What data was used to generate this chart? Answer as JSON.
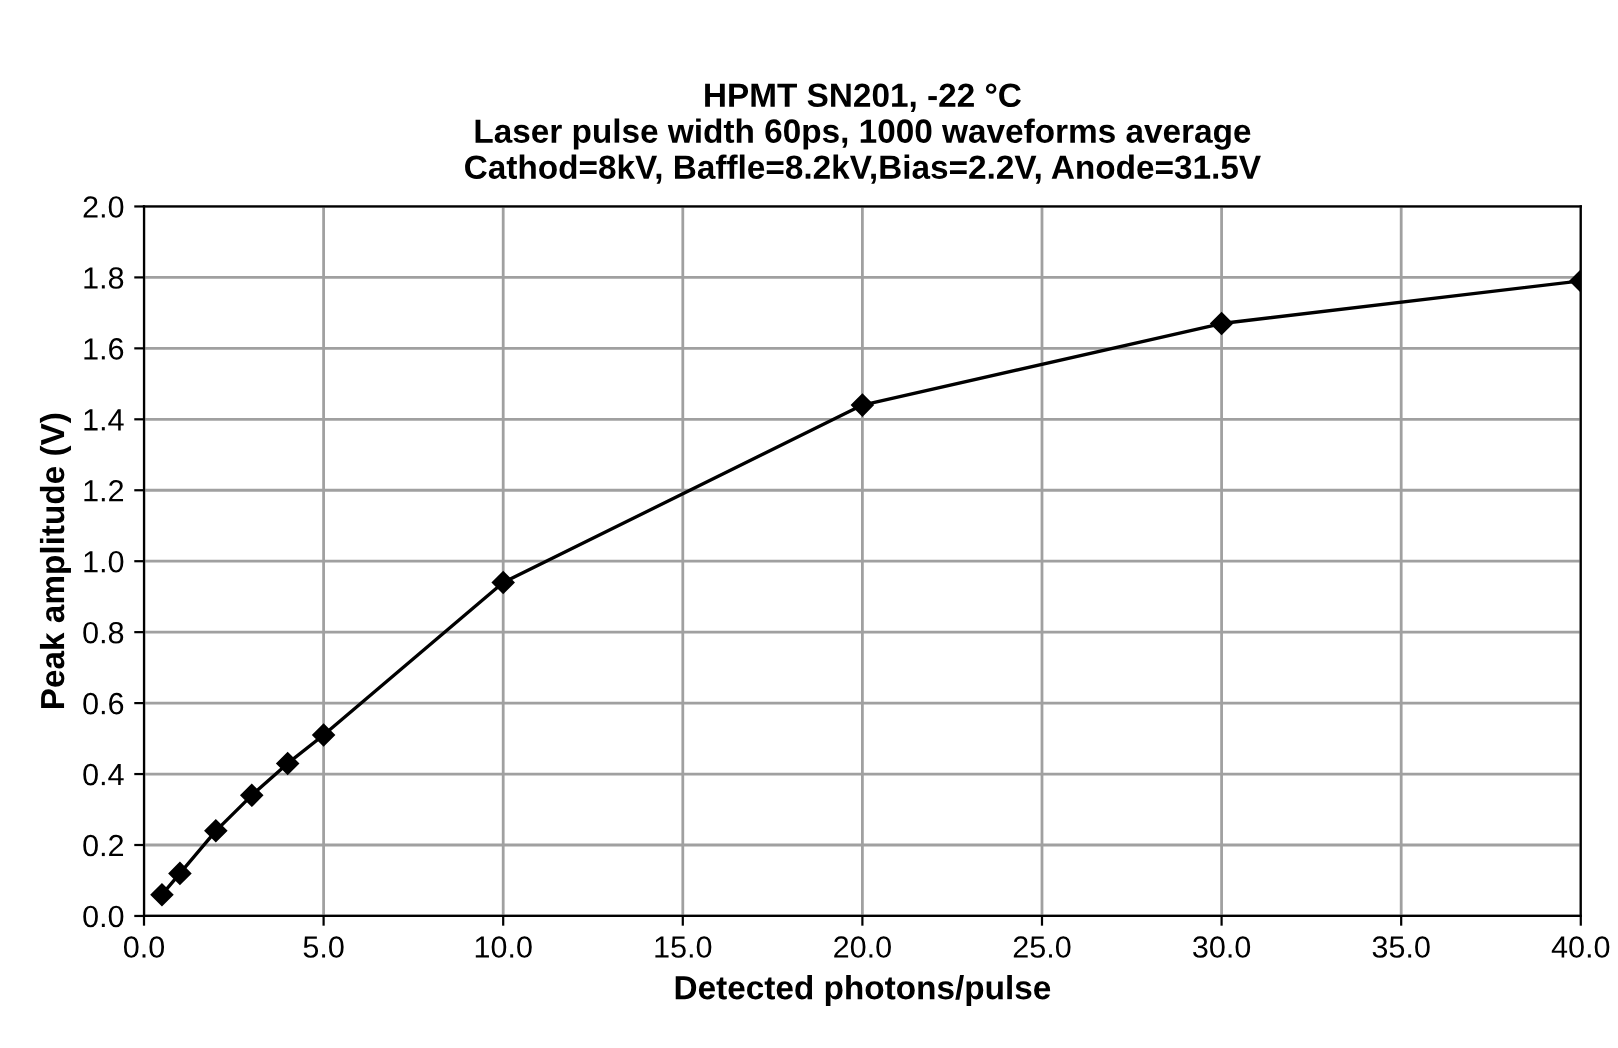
{
  "chart_data": {
    "type": "line",
    "title": "HPMT SN201, -22 °C\nLaser pulse width 60ps, 1000 waveforms average\nCathod=8kV, Baffle=8.2kV,Bias=2.2V, Anode=31.5V",
    "xlabel": "Detected photons/pulse",
    "ylabel": "Peak amplitude (V)",
    "x": [
      0.5,
      1,
      2,
      3,
      4,
      5,
      10,
      20,
      30,
      40
    ],
    "series": [
      {
        "color": "#000000",
        "values": [
          0.06,
          0.12,
          0.24,
          0.34,
          0.43,
          0.51,
          0.94,
          1.44,
          1.67,
          1.79
        ]
      }
    ],
    "xlim": [
      0,
      40
    ],
    "xticks": [
      {
        "value": 0,
        "label": "0.0"
      },
      {
        "value": 5,
        "label": "5.0"
      },
      {
        "value": 10,
        "label": "10.0"
      },
      {
        "value": 15,
        "label": "15.0"
      },
      {
        "value": 20,
        "label": "20.0"
      },
      {
        "value": 25,
        "label": "25.0"
      },
      {
        "value": 30,
        "label": "30.0"
      },
      {
        "value": 35,
        "label": "35.0"
      },
      {
        "value": 40,
        "label": "40.0"
      }
    ],
    "ylim": [
      0,
      2
    ],
    "yticks": [
      {
        "value": 0,
        "label": "0.0"
      },
      {
        "value": 0.2,
        "label": "0.2"
      },
      {
        "value": 0.4,
        "label": "0.4"
      },
      {
        "value": 0.6,
        "label": "0.6"
      },
      {
        "value": 0.8,
        "label": "0.8"
      },
      {
        "value": 1.0,
        "label": "1.0"
      },
      {
        "value": 1.2,
        "label": "1.2"
      },
      {
        "value": 1.4,
        "label": "1.4"
      },
      {
        "value": 1.6,
        "label": "1.6"
      },
      {
        "value": 1.8,
        "label": "1.8"
      },
      {
        "value": 2.0,
        "label": "2.0"
      }
    ],
    "grid": true,
    "marker": "diamond",
    "line_style": "solid",
    "legend": false
  }
}
